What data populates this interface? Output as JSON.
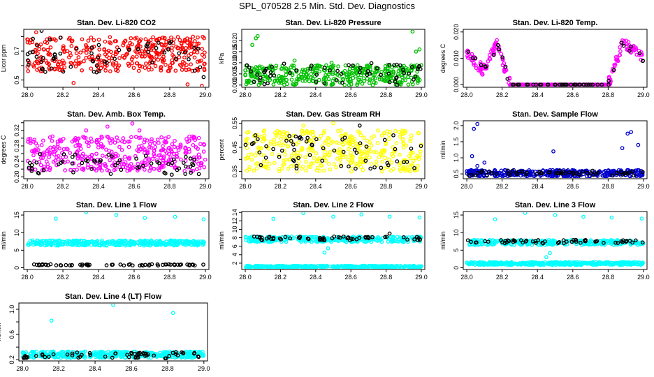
{
  "page": {
    "title": "SPL_070528  2.5 Min. Std. Dev. Diagnostics"
  },
  "chart_data": [
    {
      "type": "scatter",
      "title": "Stan. Dev. Li-820 CO2",
      "ylabel": "Licor ppm",
      "xlim": [
        27.98,
        29.02
      ],
      "ylim": [
        0.45,
        0.85
      ],
      "xticks": [
        "28.0",
        "28.2",
        "28.4",
        "28.6",
        "28.8",
        "29.0"
      ],
      "yticks": [
        0.5,
        0.6,
        0.7,
        0.8
      ],
      "ytick_labels": [
        "0.5",
        "",
        "0.7",
        ""
      ],
      "series": [
        {
          "color": "#ff0000",
          "count": 380,
          "band": [
            0.56,
            0.8
          ],
          "outliers": [
            [
              28.05,
              0.83
            ],
            [
              28.26,
              0.48
            ],
            [
              28.9,
              0.47
            ],
            [
              28.98,
              0.46
            ]
          ]
        },
        {
          "color": "#000000",
          "count": 60,
          "band": [
            0.55,
            0.8
          ],
          "outliers": [
            [
              28.08,
              0.84
            ],
            [
              28.99,
              0.52
            ]
          ]
        }
      ]
    },
    {
      "type": "scatter",
      "title": "Stan. Dev. Li-820 Pressure",
      "ylabel": "kPa",
      "xlim": [
        27.98,
        29.02
      ],
      "ylim": [
        -0.001,
        0.025
      ],
      "xticks": [
        "28.0",
        "28.2",
        "28.4",
        "28.6",
        "28.8",
        "29.0"
      ],
      "yticks": [
        0,
        0.005,
        0.01,
        0.015,
        0.02
      ],
      "ytick_labels": [
        "0.000",
        "0.005",
        "0.010",
        "0.015",
        "0.020"
      ],
      "series": [
        {
          "color": "#00c000",
          "count": 380,
          "band": [
            0.0,
            0.009
          ],
          "outliers": [
            [
              28.06,
              0.021
            ],
            [
              28.07,
              0.022
            ],
            [
              28.04,
              0.018
            ],
            [
              28.28,
              0.011
            ],
            [
              28.49,
              0.01
            ],
            [
              28.95,
              0.024
            ],
            [
              28.97,
              0.015
            ],
            [
              28.99,
              0.016
            ]
          ]
        },
        {
          "color": "#000000",
          "count": 60,
          "band": [
            0.0,
            0.01
          ],
          "outliers": []
        }
      ]
    },
    {
      "type": "scatter",
      "title": "Stan. Dev. Li-820 Temp.",
      "ylabel": "degrees C",
      "xlim": [
        27.98,
        29.02
      ],
      "ylim": [
        -0.001,
        0.021
      ],
      "xticks": [
        "28.0",
        "28.2",
        "28.4",
        "28.6",
        "28.8",
        "29.0"
      ],
      "yticks": [
        0,
        0.01,
        0.02
      ],
      "ytick_labels": [
        "0.000",
        "0.010",
        "0.020"
      ],
      "series": [
        {
          "color": "#ff00ff",
          "count": 330,
          "band": [
            0.0,
            0.016
          ],
          "outliers": []
        },
        {
          "color": "#000000",
          "count": 60,
          "band": [
            0.0,
            0.016
          ],
          "outliers": []
        }
      ]
    },
    {
      "type": "scatter",
      "title": "Stan. Dev. Amb. Box Temp.",
      "ylabel": "degrees C",
      "xlim": [
        27.98,
        29.02
      ],
      "ylim": [
        0.195,
        0.345
      ],
      "xticks": [
        "28.0",
        "28.2",
        "28.4",
        "28.6",
        "28.8",
        "29.0"
      ],
      "yticks": [
        0.2,
        0.22,
        0.24,
        0.26,
        0.28,
        0.3,
        0.32,
        0.34
      ],
      "ytick_labels": [
        "0.20",
        "",
        "0.24",
        "",
        "0.28",
        "",
        "0.32",
        ""
      ],
      "series": [
        {
          "color": "#ff00ff",
          "count": 380,
          "band": [
            0.215,
            0.305
          ],
          "outliers": [
            [
              28.33,
              0.32
            ],
            [
              28.45,
              0.33
            ],
            [
              28.59,
              0.338
            ],
            [
              28.63,
              0.32
            ]
          ]
        },
        {
          "color": "#000000",
          "count": 60,
          "band": [
            0.205,
            0.26
          ],
          "outliers": []
        }
      ]
    },
    {
      "type": "scatter",
      "title": "Stan. Dev. Gas Stream RH",
      "ylabel": "percent",
      "xlim": [
        27.98,
        29.02
      ],
      "ylim": [
        0.32,
        0.56
      ],
      "xticks": [
        "28.0",
        "28.2",
        "28.4",
        "28.6",
        "28.8",
        "29.0"
      ],
      "yticks": [
        0.35,
        0.4,
        0.45,
        0.5,
        0.55
      ],
      "ytick_labels": [
        "0.35",
        "",
        "0.45",
        "",
        "0.55"
      ],
      "series": [
        {
          "color": "#ffff00",
          "count": 380,
          "band": [
            0.35,
            0.52
          ],
          "outliers": [
            [
              28.33,
              0.54
            ],
            [
              28.5,
              0.55
            ]
          ]
        },
        {
          "color": "#000000",
          "count": 60,
          "band": [
            0.36,
            0.5
          ],
          "outliers": [
            [
              28.65,
              0.54
            ]
          ]
        }
      ]
    },
    {
      "type": "scatter",
      "title": "Stan. Dev. Sample Flow",
      "ylabel": "ml/min",
      "xlim": [
        27.98,
        29.02
      ],
      "ylim": [
        0.35,
        2.15
      ],
      "xticks": [
        "28.0",
        "28.2",
        "28.4",
        "28.6",
        "28.8",
        "29.0"
      ],
      "yticks": [
        0.5,
        1.0,
        1.5,
        2.0
      ],
      "ytick_labels": [
        "0.5",
        "1.0",
        "1.5",
        "2.0"
      ],
      "series": [
        {
          "color": "#0000cc",
          "count": 380,
          "band": [
            0.42,
            0.62
          ],
          "outliers": [
            [
              28.04,
              1.9
            ],
            [
              28.06,
              2.05
            ],
            [
              28.03,
              1.05
            ],
            [
              28.1,
              0.85
            ],
            [
              28.06,
              0.75
            ],
            [
              28.49,
              1.2
            ],
            [
              28.88,
              1.3
            ],
            [
              28.91,
              1.75
            ],
            [
              28.93,
              1.8
            ],
            [
              28.97,
              1.4
            ]
          ]
        },
        {
          "color": "#000000",
          "count": 60,
          "band": [
            0.45,
            0.6
          ],
          "outliers": []
        }
      ]
    },
    {
      "type": "scatter",
      "title": "Stan. Dev. Line 1 Flow",
      "ylabel": "ml/min",
      "xlim": [
        27.98,
        29.02
      ],
      "ylim": [
        -0.5,
        16
      ],
      "xticks": [
        "28.0",
        "28.2",
        "28.4",
        "28.6",
        "28.8",
        "29.0"
      ],
      "yticks": [
        0,
        5,
        10,
        15
      ],
      "ytick_labels": [
        "0",
        "5",
        "10",
        "15"
      ],
      "series": [
        {
          "color": "#00ffff",
          "count": 360,
          "band": [
            6.3,
            7.8
          ],
          "outliers": [
            [
              28.16,
              14
            ],
            [
              28.33,
              15.8
            ],
            [
              28.5,
              15
            ],
            [
              28.66,
              14.2
            ],
            [
              28.83,
              14.5
            ],
            [
              28.99,
              13.8
            ]
          ]
        },
        {
          "color": "#000000",
          "count": 60,
          "band": [
            0.6,
            1.0
          ],
          "outliers": []
        }
      ]
    },
    {
      "type": "scatter",
      "title": "Stan. Dev. Line 2 Flow",
      "ylabel": "ml/min",
      "xlim": [
        27.98,
        29.02
      ],
      "ylim": [
        0.5,
        14.2
      ],
      "xticks": [
        "28.0",
        "28.2",
        "28.4",
        "28.6",
        "28.8",
        "29.0"
      ],
      "yticks": [
        2,
        4,
        6,
        8,
        10,
        12,
        14
      ],
      "ytick_labels": [
        "2",
        "4",
        "6",
        "8",
        "10",
        "12",
        "14"
      ],
      "series": [
        {
          "color": "#00ffff",
          "count": 380,
          "band": [
            0.9,
            1.4
          ],
          "outliers": []
        },
        {
          "color": "#00ffff",
          "count": 300,
          "band": [
            7.0,
            8.3
          ],
          "outliers": [
            [
              28.16,
              12.5
            ],
            [
              28.33,
              13.8
            ],
            [
              28.5,
              13
            ],
            [
              28.66,
              13.5
            ],
            [
              28.82,
              13
            ],
            [
              28.99,
              12.8
            ],
            [
              28.45,
              4.5
            ],
            [
              28.47,
              5.5
            ]
          ]
        },
        {
          "color": "#000000",
          "count": 60,
          "band": [
            7.4,
            8.3
          ],
          "outliers": [
            [
              28.82,
              9
            ]
          ]
        }
      ]
    },
    {
      "type": "scatter",
      "title": "Stan. Dev. Line 3 Flow",
      "ylabel": "ml/min",
      "xlim": [
        27.98,
        29.02
      ],
      "ylim": [
        -0.5,
        16
      ],
      "xticks": [
        "28.0",
        "28.2",
        "28.4",
        "28.6",
        "28.8",
        "29.0"
      ],
      "yticks": [
        0,
        5,
        10,
        15
      ],
      "ytick_labels": [
        "0",
        "5",
        "10",
        "15"
      ],
      "series": [
        {
          "color": "#00ffff",
          "count": 380,
          "band": [
            0.8,
            1.6
          ],
          "outliers": []
        },
        {
          "color": "#00ffff",
          "count": 300,
          "band": [
            6.5,
            7.9
          ],
          "outliers": [
            [
              28.16,
              13.8
            ],
            [
              28.33,
              15.6
            ],
            [
              28.5,
              15
            ],
            [
              28.66,
              14.5
            ],
            [
              28.82,
              14.3
            ],
            [
              28.99,
              14
            ],
            [
              28.45,
              3
            ],
            [
              28.47,
              4.2
            ]
          ]
        },
        {
          "color": "#000000",
          "count": 60,
          "band": [
            6.9,
            7.9
          ],
          "outliers": []
        }
      ]
    },
    {
      "type": "scatter",
      "title": "Stan. Dev. Line 4 (LT) Flow",
      "ylabel": "ml/min",
      "xlim": [
        27.98,
        29.02
      ],
      "ylim": [
        0.18,
        1.1
      ],
      "xticks": [
        "28.0",
        "28.2",
        "28.4",
        "28.6",
        "28.8",
        "29.0"
      ],
      "yticks": [
        0.2,
        0.4,
        0.6,
        0.8,
        1.0
      ],
      "ytick_labels": [
        "0.2",
        "",
        "0.6",
        "",
        "1.0"
      ],
      "series": [
        {
          "color": "#00ffff",
          "count": 380,
          "band": [
            0.23,
            0.33
          ],
          "outliers": [
            [
              28.16,
              0.82
            ],
            [
              28.5,
              1.07
            ],
            [
              28.83,
              0.94
            ]
          ]
        },
        {
          "color": "#000000",
          "count": 60,
          "band": [
            0.22,
            0.32
          ],
          "outliers": []
        }
      ]
    }
  ]
}
